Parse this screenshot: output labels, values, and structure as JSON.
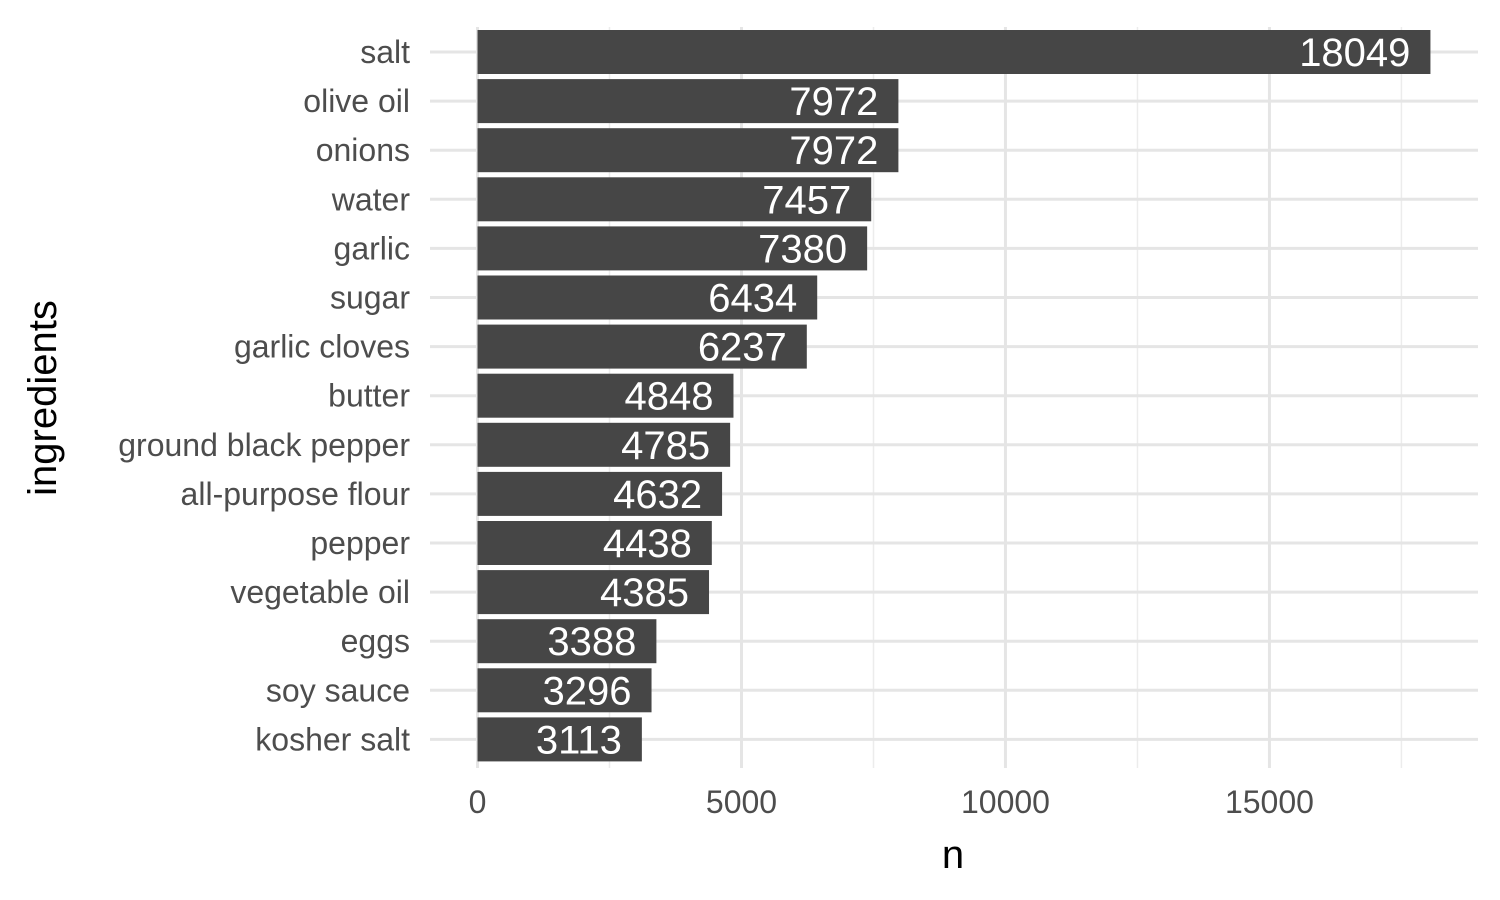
{
  "chart_data": {
    "type": "bar",
    "orientation": "horizontal",
    "categories": [
      "salt",
      "olive oil",
      "onions",
      "water",
      "garlic",
      "sugar",
      "garlic cloves",
      "butter",
      "ground black pepper",
      "all-purpose flour",
      "pepper",
      "vegetable oil",
      "eggs",
      "soy sauce",
      "kosher salt"
    ],
    "values": [
      18049,
      7972,
      7972,
      7457,
      7380,
      6434,
      6237,
      4848,
      4785,
      4632,
      4438,
      4385,
      3388,
      3296,
      3113
    ],
    "data_labels": [
      "18049",
      "7972",
      "7972",
      "7457",
      "7380",
      "6434",
      "6237",
      "4848",
      "4785",
      "4632",
      "4438",
      "4385",
      "3388",
      "3296",
      "3113"
    ],
    "xlabel": "n",
    "ylabel": "ingredients",
    "x_ticks": [
      0,
      5000,
      10000,
      15000
    ],
    "x_tick_labels": [
      "0",
      "5000",
      "10000",
      "15000"
    ],
    "x_minor_ticks": [
      2500,
      7500,
      12500,
      17500
    ],
    "xlim": [
      -900,
      18950
    ],
    "grid": true,
    "bar_color": "#464646",
    "grid_color": "#e5e5e5",
    "background": "#ffffff"
  }
}
